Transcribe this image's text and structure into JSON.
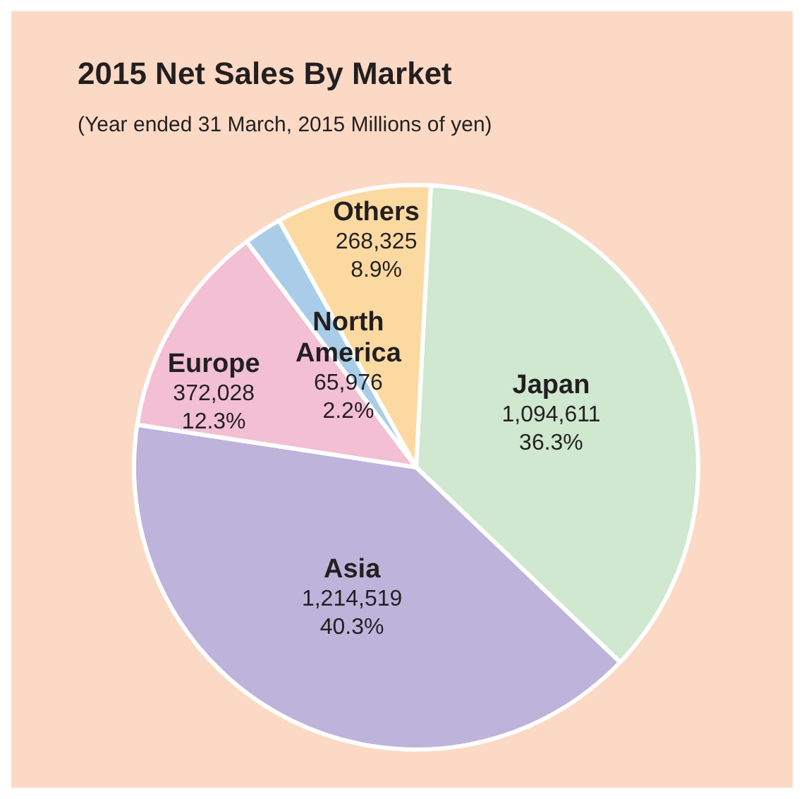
{
  "chart_data": {
    "type": "pie",
    "title": "2015 Net Sales By Market",
    "subtitle": "(Year ended 31 March, 2015 Millions of yen)",
    "categories": [
      "Japan",
      "Asia",
      "Europe",
      "North America",
      "Others"
    ],
    "values": [
      1094611,
      1214519,
      372028,
      65976,
      268325
    ],
    "colors": [
      "#cfe8cf",
      "#bdb3db",
      "#f2bfd3",
      "#a9cde8",
      "#fcd9a0"
    ],
    "value_labels": [
      "1,094,611\n36.3%",
      "1,214,519\n40.3%",
      "372,028\n12.3%",
      "65,976\n2.2%",
      "268,325\n8.9%"
    ],
    "legend": false
  }
}
